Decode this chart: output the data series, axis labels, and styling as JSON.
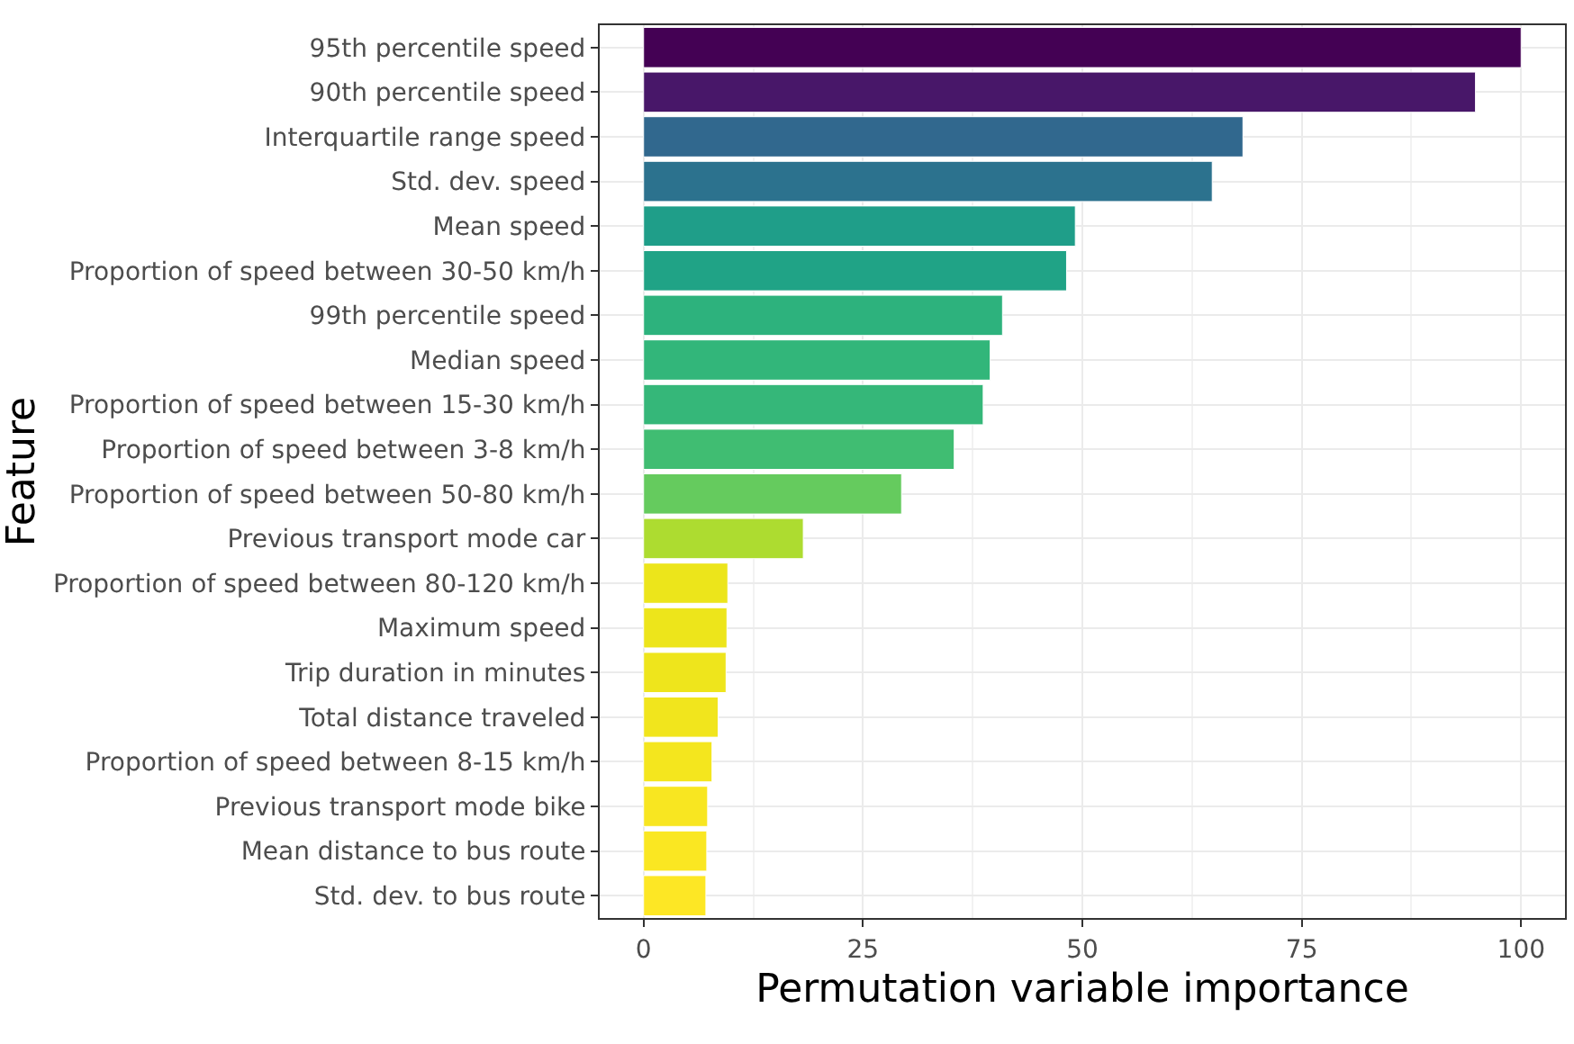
{
  "chart_data": {
    "type": "bar",
    "orientation": "horizontal",
    "xlabel": "Permutation variable importance",
    "ylabel": "Feature",
    "categories": [
      "95th percentile speed",
      "90th percentile speed",
      "Interquartile range speed",
      "Std. dev. speed",
      "Mean speed",
      "Proportion of speed between 30-50 km/h",
      "99th percentile speed",
      "Median speed",
      "Proportion of speed between 15-30 km/h",
      "Proportion of speed between 3-8 km/h",
      "Proportion of speed between 50-80 km/h",
      "Previous transport mode car",
      "Proportion of speed between 80-120 km/h",
      "Maximum speed",
      "Trip duration in minutes",
      "Total distance traveled",
      "Proportion of speed between 8-15 km/h",
      "Previous transport mode bike",
      "Mean distance to bus route",
      "Std. dev. to bus route"
    ],
    "values": [
      100,
      94.8,
      68.3,
      64.8,
      49.2,
      48.2,
      40.9,
      39.5,
      38.7,
      35.4,
      29.4,
      18.2,
      9.6,
      9.5,
      9.4,
      8.5,
      7.8,
      7.3,
      7.2,
      7.1
    ],
    "colors": [
      "#440154",
      "#481769",
      "#31688e",
      "#2c728e",
      "#1f9e89",
      "#20a386",
      "#2db27d",
      "#32b67a",
      "#35b779",
      "#40bd72",
      "#65cb5e",
      "#addc30",
      "#ece51b",
      "#ede51b",
      "#eee51c",
      "#f1e51d",
      "#f4e61e",
      "#f8e621",
      "#fae722",
      "#fde725"
    ],
    "xlim": [
      -5,
      105
    ],
    "xticks": [
      0,
      25,
      50,
      75,
      100
    ],
    "grid": true
  }
}
